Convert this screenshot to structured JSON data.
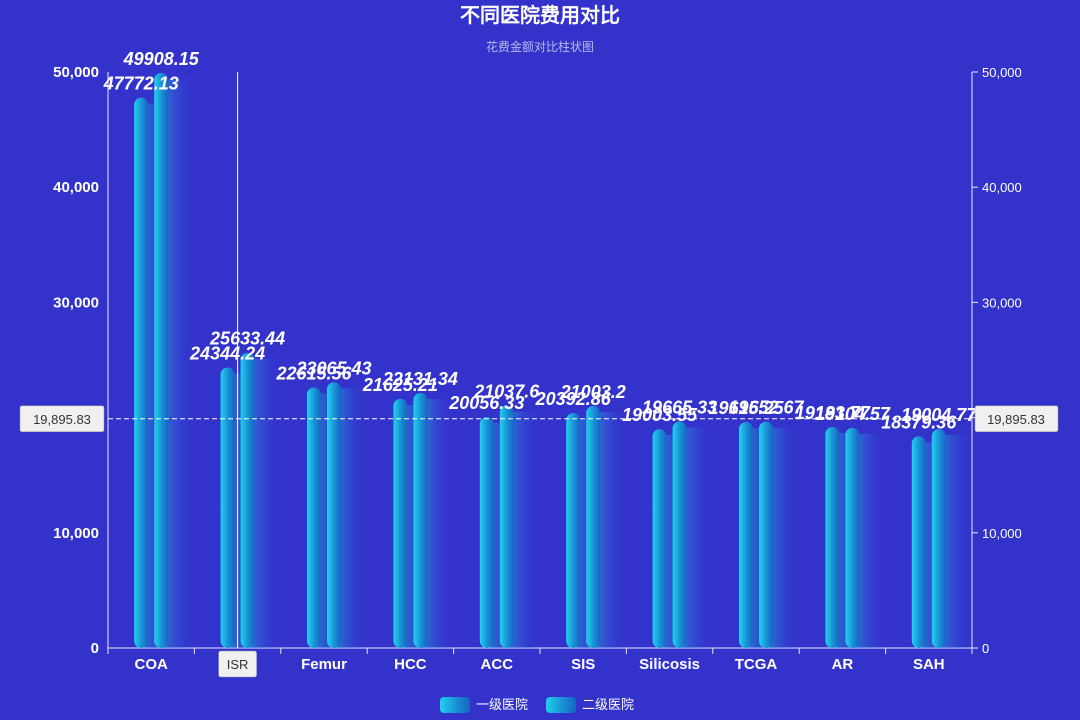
{
  "chart_data": {
    "type": "bar",
    "title": "不同医院费用对比",
    "subtitle": "花费金额对比柱状图",
    "categories": [
      "COA",
      "ISR",
      "Femur",
      "HCC",
      "ACC",
      "SIS",
      "Silicosis",
      "TCGA",
      "AR",
      "SAH"
    ],
    "series": [
      {
        "name": "一级医院",
        "values": [
          47772.13,
          24344.24,
          22615.56,
          21625.21,
          20056.33,
          20392.86,
          19003.55,
          19615.25,
          19183.77,
          18379.36
        ]
      },
      {
        "name": "二级医院",
        "values": [
          49908.15,
          25633.44,
          23065.43,
          22131.34,
          21037.6,
          21003.2,
          19665.33,
          19652.67,
          19104.57,
          19004.77
        ]
      }
    ],
    "data_labels": [
      [
        "47772.13",
        "24344.24",
        "22615.56",
        "21625.21",
        "20056.33",
        "20392.86",
        "19003.55",
        "19615.25",
        "19183.77",
        "18379.36"
      ],
      [
        "49908.15",
        "25633.44",
        "23065.43",
        "22131.34",
        "21037.6",
        "21003.2",
        "19665.33",
        "19652.67",
        "19104.57",
        "19004.77"
      ]
    ],
    "ylim": [
      0,
      50000
    ],
    "yticks": [
      "0",
      "10,000",
      "20,000",
      "30,000",
      "40,000",
      "50,000"
    ],
    "yticks_right": [
      "0",
      "10,000",
      "20,000",
      "30,000",
      "40,000",
      "50,000"
    ],
    "y_tick_values": [
      0,
      10000,
      20000,
      30000,
      40000,
      50000
    ],
    "crosshair": {
      "category": "ISR",
      "y_value": 19895.83,
      "y_label": "19,895.83"
    },
    "legend": {
      "position": "bottom-center"
    },
    "colors": {
      "background": "#3333cc",
      "bar_light": "#1fd3ec",
      "bar_mid": "#1a8fd6",
      "bar_dark": "#1565c0",
      "axis": "#e8e8ff"
    }
  }
}
